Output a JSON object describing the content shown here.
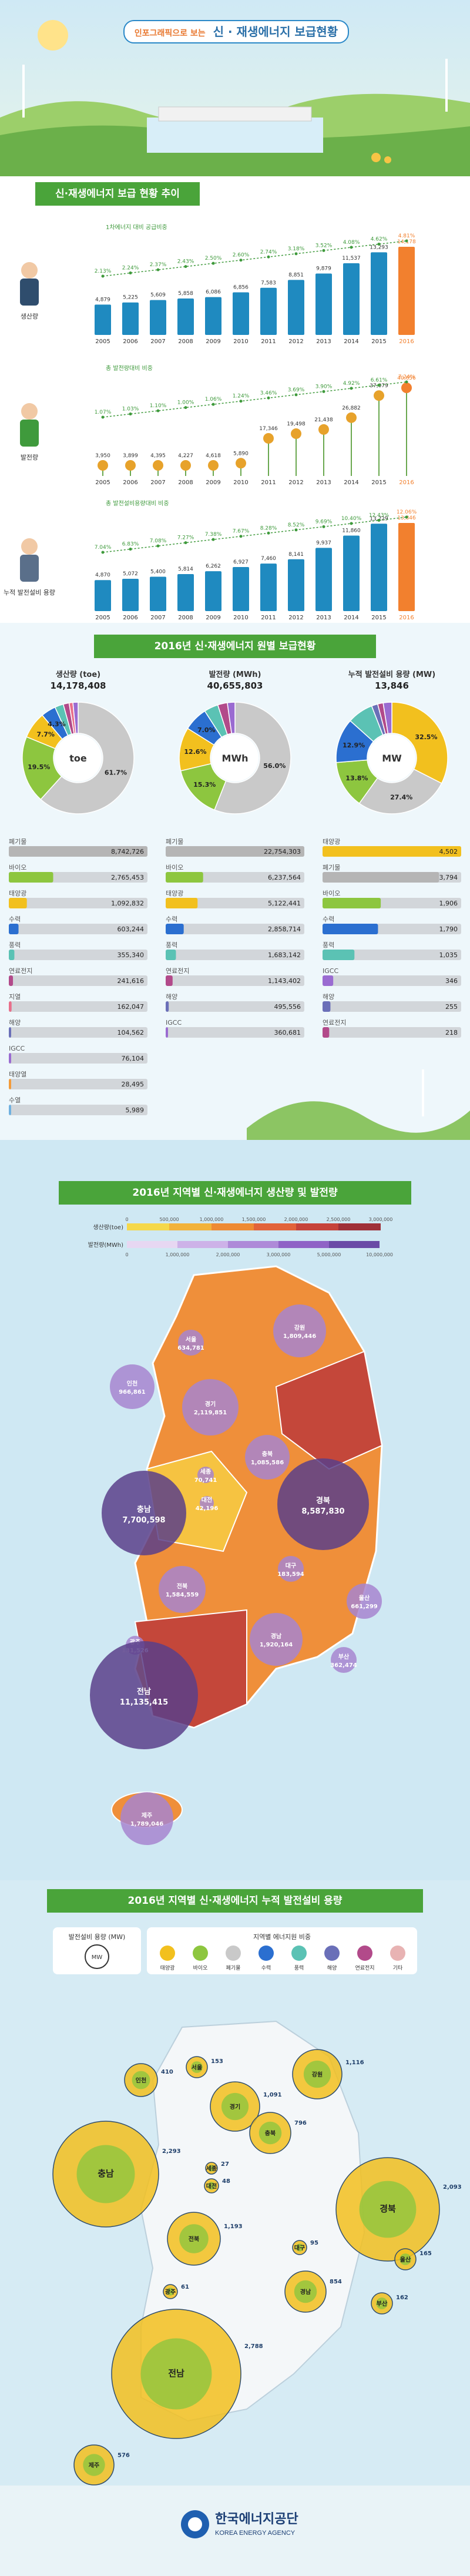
{
  "header": {
    "title_prefix": "인포그래픽으로 보는",
    "title": "신 · 재생에너지 보급현황"
  },
  "trend": {
    "heading": "신·재생에너지 보급 현황 추이",
    "colors": {
      "bar": "#1f8ac0",
      "highlight": "#f2802e",
      "accent": "#e7a22b",
      "green": "#3f9a3c"
    },
    "production": {
      "label": "생산량",
      "ratio_caption": "1차에너지 대비 공급비중",
      "years": [
        "2005",
        "2006",
        "2007",
        "2008",
        "2009",
        "2010",
        "2011",
        "2012",
        "2013",
        "2014",
        "2015",
        "2016"
      ],
      "values": [
        "4,879",
        "5,225",
        "5,609",
        "5,858",
        "6,086",
        "6,856",
        "7,583",
        "8,851",
        "9,879",
        "11,537",
        "13,293",
        "14,178"
      ],
      "ratios": [
        "2.13%",
        "2.24%",
        "2.37%",
        "2.43%",
        "2.50%",
        "2.60%",
        "2.74%",
        "3.18%",
        "3.52%",
        "4.08%",
        "4.62%",
        "4.81%"
      ]
    },
    "generation": {
      "label": "발전량",
      "ratio_caption": "총 발전량대비 비중",
      "years": [
        "2005",
        "2006",
        "2007",
        "2008",
        "2009",
        "2010",
        "2011",
        "2012",
        "2013",
        "2014",
        "2015",
        "2016"
      ],
      "values": [
        "3,950",
        "3,899",
        "4,395",
        "4,227",
        "4,618",
        "5,890",
        "17,346",
        "19,498",
        "21,438",
        "26,882",
        "37,079",
        "40,656"
      ],
      "ratios": [
        "1.07%",
        "1.03%",
        "1.10%",
        "1.00%",
        "1.06%",
        "1.24%",
        "3.46%",
        "3.69%",
        "3.90%",
        "4.92%",
        "6.61%",
        "7.24%"
      ]
    },
    "capacity": {
      "label": "누적 발전설비 용량",
      "ratio_caption": "총 발전설비용량대비 비중",
      "years": [
        "2005",
        "2006",
        "2007",
        "2008",
        "2009",
        "2010",
        "2011",
        "2012",
        "2013",
        "2014",
        "2015",
        "2016"
      ],
      "values": [
        "4,870",
        "5,072",
        "5,400",
        "5,814",
        "6,262",
        "6,927",
        "7,460",
        "8,141",
        "9,937",
        "11,860",
        "13,729",
        "13,846"
      ],
      "ratios": [
        "7.04%",
        "6.83%",
        "7.08%",
        "7.27%",
        "7.38%",
        "7.67%",
        "8.28%",
        "8.52%",
        "9.69%",
        "10.40%",
        "12.43%",
        "12.06%"
      ]
    }
  },
  "sources": {
    "heading": "2016년 신·재생에너지 원별 보급현황",
    "production": {
      "label": "생산량 (toe)",
      "total": "14,178,408",
      "unit": "toe",
      "slices": [
        {
          "name": "폐기물",
          "pct": 61.7,
          "color": "#c9c9c9"
        },
        {
          "name": "바이오",
          "pct": 19.5,
          "color": "#8dc63f"
        },
        {
          "name": "태양광",
          "pct": 7.7,
          "color": "#f2c01e"
        },
        {
          "name": "수력",
          "pct": 4.3,
          "color": "#2b6fd0"
        },
        {
          "name": "풍력",
          "pct": 2.5,
          "color": "#5bc2b4"
        },
        {
          "name": "연료전지",
          "pct": 1.7,
          "color": "#b24a8a"
        },
        {
          "name": "지열",
          "pct": 1.1,
          "color": "#e86f8b"
        },
        {
          "name": "기타",
          "pct": 1.5,
          "color": "#9a6bd1"
        }
      ],
      "labels": [
        "61.7%",
        "19.5%",
        "7.7%",
        "4.3%"
      ],
      "bars": [
        {
          "name": "폐기물",
          "value": "8,742,726",
          "frac": 1.0,
          "color": "#b5b5b5"
        },
        {
          "name": "바이오",
          "value": "2,765,453",
          "frac": 0.32,
          "color": "#8dc63f"
        },
        {
          "name": "태양광",
          "value": "1,092,832",
          "frac": 0.13,
          "color": "#f2c01e"
        },
        {
          "name": "수력",
          "value": "603,244",
          "frac": 0.07,
          "color": "#2b6fd0"
        },
        {
          "name": "풍력",
          "value": "355,340",
          "frac": 0.04,
          "color": "#5bc2b4"
        },
        {
          "name": "연료전지",
          "value": "241,616",
          "frac": 0.03,
          "color": "#b24a8a"
        },
        {
          "name": "지열",
          "value": "162,047",
          "frac": 0.02,
          "color": "#e86f8b"
        },
        {
          "name": "해양",
          "value": "104,562",
          "frac": 0.012,
          "color": "#6a6fb8"
        },
        {
          "name": "IGCC",
          "value": "76,104",
          "frac": 0.009,
          "color": "#9a6bd1"
        },
        {
          "name": "태양열",
          "value": "28,495",
          "frac": 0.004,
          "color": "#f39b3a"
        },
        {
          "name": "수열",
          "value": "5,989",
          "frac": 0.002,
          "color": "#6fb1e0"
        }
      ]
    },
    "generation": {
      "label": "발전량 (MWh)",
      "total": "40,655,803",
      "unit": "MWh",
      "slices": [
        {
          "name": "폐기물",
          "pct": 56.0,
          "color": "#c9c9c9"
        },
        {
          "name": "바이오",
          "pct": 15.3,
          "color": "#8dc63f"
        },
        {
          "name": "태양광",
          "pct": 12.6,
          "color": "#f2c01e"
        },
        {
          "name": "수력",
          "pct": 7.0,
          "color": "#2b6fd0"
        },
        {
          "name": "풍력",
          "pct": 4.1,
          "color": "#5bc2b4"
        },
        {
          "name": "연료전지",
          "pct": 2.8,
          "color": "#b24a8a"
        },
        {
          "name": "기타",
          "pct": 2.2,
          "color": "#9a6bd1"
        }
      ],
      "labels": [
        "56.0%",
        "15.3%",
        "12.6%",
        "7.0%"
      ],
      "bars": [
        {
          "name": "폐기물",
          "value": "22,754,303",
          "frac": 1.0,
          "color": "#b5b5b5"
        },
        {
          "name": "바이오",
          "value": "6,237,564",
          "frac": 0.27,
          "color": "#8dc63f"
        },
        {
          "name": "태양광",
          "value": "5,122,441",
          "frac": 0.23,
          "color": "#f2c01e"
        },
        {
          "name": "수력",
          "value": "2,858,714",
          "frac": 0.13,
          "color": "#2b6fd0"
        },
        {
          "name": "풍력",
          "value": "1,683,142",
          "frac": 0.074,
          "color": "#5bc2b4"
        },
        {
          "name": "연료전지",
          "value": "1,143,402",
          "frac": 0.05,
          "color": "#b24a8a"
        },
        {
          "name": "해양",
          "value": "495,556",
          "frac": 0.022,
          "color": "#6a6fb8"
        },
        {
          "name": "IGCC",
          "value": "360,681",
          "frac": 0.016,
          "color": "#9a6bd1"
        }
      ]
    },
    "capacity": {
      "label": "누적 발전설비 용량 (MW)",
      "total": "13,846",
      "unit": "MW",
      "slices": [
        {
          "name": "태양광",
          "pct": 32.5,
          "color": "#f2c01e"
        },
        {
          "name": "폐기물",
          "pct": 27.4,
          "color": "#c9c9c9"
        },
        {
          "name": "바이오",
          "pct": 13.8,
          "color": "#8dc63f"
        },
        {
          "name": "수력",
          "pct": 12.9,
          "color": "#2b6fd0"
        },
        {
          "name": "풍력",
          "pct": 7.5,
          "color": "#5bc2b4"
        },
        {
          "name": "해양",
          "pct": 1.8,
          "color": "#6a6fb8"
        },
        {
          "name": "연료전지",
          "pct": 1.6,
          "color": "#b24a8a"
        },
        {
          "name": "기타",
          "pct": 2.5,
          "color": "#9a6bd1"
        }
      ],
      "labels": [
        "32.5%",
        "27.4%",
        "13.8%",
        "12.9%"
      ],
      "bars": [
        {
          "name": "태양광",
          "value": "4,502",
          "frac": 1.0,
          "color": "#f2c01e"
        },
        {
          "name": "폐기물",
          "value": "3,794",
          "frac": 0.84,
          "color": "#b5b5b5"
        },
        {
          "name": "바이오",
          "value": "1,906",
          "frac": 0.42,
          "color": "#8dc63f"
        },
        {
          "name": "수력",
          "value": "1,790",
          "frac": 0.4,
          "color": "#2b6fd0"
        },
        {
          "name": "풍력",
          "value": "1,035",
          "frac": 0.23,
          "color": "#5bc2b4"
        },
        {
          "name": "IGCC",
          "value": "346",
          "frac": 0.077,
          "color": "#9a6bd1"
        },
        {
          "name": "해양",
          "value": "255",
          "frac": 0.057,
          "color": "#6a6fb8"
        },
        {
          "name": "연료전지",
          "value": "218",
          "frac": 0.048,
          "color": "#b24a8a"
        }
      ]
    }
  },
  "regional": {
    "heading": "2016년 지역별 신·재생에너지 생산량 및 발전량",
    "legend_prod": "생산량(toe)",
    "legend_gen": "발전량(MWh)",
    "prod_ticks": [
      "0",
      "500,000",
      "1,000,000",
      "1,500,000",
      "2,000,000",
      "2,500,000",
      "3,000,000"
    ],
    "gen_ticks": [
      "0",
      "1,000,000",
      "2,000,000",
      "3,000,000",
      "5,000,000",
      "10,000,000"
    ],
    "regions": [
      {
        "name": "서울",
        "value": "634,781"
      },
      {
        "name": "인천",
        "value": "966,861"
      },
      {
        "name": "경기",
        "value": "2,119,851"
      },
      {
        "name": "강원",
        "value": "1,809,446"
      },
      {
        "name": "충북",
        "value": "1,085,586"
      },
      {
        "name": "충남",
        "value": "7,700,598"
      },
      {
        "name": "세종",
        "value": "70,741"
      },
      {
        "name": "대전",
        "value": "42,196"
      },
      {
        "name": "경북",
        "value": "8,587,830"
      },
      {
        "name": "대구",
        "value": "183,594"
      },
      {
        "name": "전북",
        "value": "1,584,559"
      },
      {
        "name": "울산",
        "value": "661,299"
      },
      {
        "name": "광주",
        "value": "131,526"
      },
      {
        "name": "경남",
        "value": "1,920,164"
      },
      {
        "name": "부산",
        "value": "362,474"
      },
      {
        "name": "전남",
        "value": "11,135,415"
      },
      {
        "name": "제주",
        "value": "1,789,046"
      }
    ]
  },
  "capacity_map": {
    "heading": "2016년 지역별 신·재생에너지 누적 발전설비 용량",
    "legend_caption": "발전설비 용량 (MW)",
    "legend_unit": "MW",
    "share_caption": "지역별 에너지원 비중",
    "sources": [
      {
        "name": "태양광",
        "color": "#f2c01e"
      },
      {
        "name": "바이오",
        "color": "#8dc63f"
      },
      {
        "name": "폐기물",
        "color": "#c9c9c9"
      },
      {
        "name": "수력",
        "color": "#2b6fd0"
      },
      {
        "name": "풍력",
        "color": "#5bc2b4"
      },
      {
        "name": "해양",
        "color": "#6a6fb8"
      },
      {
        "name": "연료전지",
        "color": "#b24a8a"
      },
      {
        "name": "기타",
        "color": "#e8b3b3"
      }
    ],
    "regions": [
      {
        "name": "서울",
        "value": "153"
      },
      {
        "name": "인천",
        "value": "410"
      },
      {
        "name": "경기",
        "value": "1,091"
      },
      {
        "name": "강원",
        "value": "1,116"
      },
      {
        "name": "충북",
        "value": "796"
      },
      {
        "name": "충남",
        "value": "2,293"
      },
      {
        "name": "세종",
        "value": "27"
      },
      {
        "name": "대전",
        "value": "48"
      },
      {
        "name": "경북",
        "value": "2,093"
      },
      {
        "name": "전북",
        "value": "1,193"
      },
      {
        "name": "대구",
        "value": "95"
      },
      {
        "name": "울산",
        "value": "165"
      },
      {
        "name": "광주",
        "value": "61"
      },
      {
        "name": "경남",
        "value": "854"
      },
      {
        "name": "부산",
        "value": "162"
      },
      {
        "name": "전남",
        "value": "2,788"
      },
      {
        "name": "제주",
        "value": "576"
      }
    ]
  },
  "footer": {
    "org_ko": "한국에너지공단",
    "org_en": "KOREA ENERGY AGENCY"
  },
  "chart_data": [
    {
      "type": "bar",
      "title": "생산량",
      "categories": [
        "2005",
        "2006",
        "2007",
        "2008",
        "2009",
        "2010",
        "2011",
        "2012",
        "2013",
        "2014",
        "2015",
        "2016"
      ],
      "values": [
        4879,
        5225,
        5609,
        5858,
        6086,
        6856,
        7583,
        8851,
        9879,
        11537,
        13293,
        14178
      ]
    },
    {
      "type": "bar",
      "title": "발전량",
      "categories": [
        "2005",
        "2006",
        "2007",
        "2008",
        "2009",
        "2010",
        "2011",
        "2012",
        "2013",
        "2014",
        "2015",
        "2016"
      ],
      "values": [
        3950,
        3899,
        4395,
        4227,
        4618,
        5890,
        17346,
        19498,
        21438,
        26882,
        37079,
        40656
      ]
    },
    {
      "type": "bar",
      "title": "누적 발전설비 용량",
      "categories": [
        "2005",
        "2006",
        "2007",
        "2008",
        "2009",
        "2010",
        "2011",
        "2012",
        "2013",
        "2014",
        "2015",
        "2016"
      ],
      "values": [
        4870,
        5072,
        5400,
        5814,
        6262,
        6927,
        7460,
        8141,
        9937,
        11860,
        13729,
        13846
      ]
    },
    {
      "type": "pie",
      "title": "생산량 (toe)",
      "categories": [
        "폐기물",
        "바이오",
        "태양광",
        "수력",
        "풍력",
        "연료전지",
        "지열",
        "기타"
      ],
      "values": [
        61.7,
        19.5,
        7.7,
        4.3,
        2.5,
        1.7,
        1.1,
        1.5
      ]
    },
    {
      "type": "pie",
      "title": "발전량 (MWh)",
      "categories": [
        "폐기물",
        "바이오",
        "태양광",
        "수력",
        "풍력",
        "연료전지",
        "기타"
      ],
      "values": [
        56.0,
        15.3,
        12.6,
        7.0,
        4.1,
        2.8,
        2.2
      ]
    },
    {
      "type": "pie",
      "title": "누적 발전설비 용량 (MW)",
      "categories": [
        "태양광",
        "폐기물",
        "바이오",
        "수력",
        "풍력",
        "해양",
        "연료전지",
        "기타"
      ],
      "values": [
        32.5,
        27.4,
        13.8,
        12.9,
        7.5,
        1.8,
        1.6,
        2.5
      ]
    }
  ]
}
